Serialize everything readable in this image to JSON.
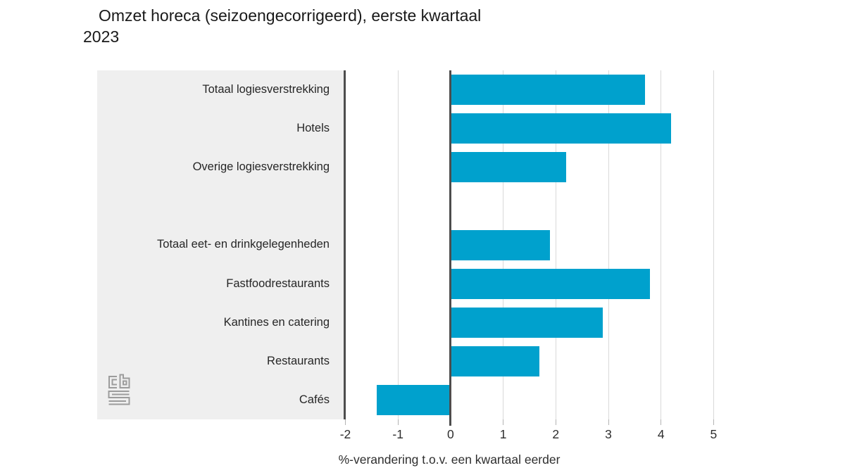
{
  "title": {
    "line1": "Omzet horeca (seizoengecorrigeerd), eerste kwartaal",
    "line2": "2023"
  },
  "x_axis": {
    "label": "%-verandering t.o.v. een kwartaal eerder"
  },
  "logo": {
    "name": "cbs-logo"
  },
  "chart_data": {
    "type": "bar",
    "orientation": "horizontal",
    "title": "Omzet horeca (seizoengecorrigeerd), eerste kwartaal 2023",
    "categories": [
      "Totaal logiesverstrekking",
      "Hotels",
      "Overige logiesverstrekking",
      "Totaal eet- en drinkgelegenheden",
      "Fastfoodrestaurants",
      "Kantines en catering",
      "Restaurants",
      "Cafés"
    ],
    "values": [
      3.7,
      4.2,
      2.2,
      1.9,
      3.8,
      2.9,
      1.7,
      -1.4
    ],
    "group_break_after_index": 2,
    "xlabel": "%-verandering t.o.v. een kwartaal eerder",
    "x_ticks": [
      -2,
      -1,
      0,
      1,
      2,
      3,
      4,
      5
    ],
    "xlim": [
      -2,
      5.5
    ],
    "grid": true,
    "legend": false,
    "bar_color": "#00a1cd",
    "axis_color": "#4d4d4d",
    "gridline_color": "#d9d9d9",
    "panel_color": "#efefef"
  }
}
